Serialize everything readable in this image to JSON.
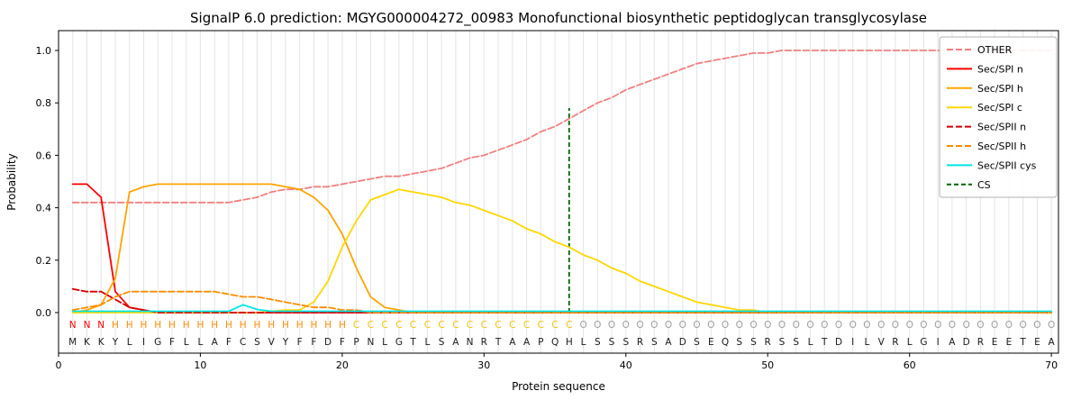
{
  "chart_data": {
    "type": "line",
    "title": "SignalP 6.0 prediction: MGYG000004272_00983 Monofunctional biosynthetic peptidoglycan transglycosylase",
    "xlabel": "Protein sequence",
    "ylabel": "Probability",
    "xlim": [
      0,
      70.5
    ],
    "ylim": [
      0,
      1.0
    ],
    "xticks": [
      0,
      10,
      20,
      30,
      40,
      50,
      60,
      70
    ],
    "yticks": [
      "0.0",
      "0.2",
      "0.4",
      "0.6",
      "0.8",
      "1.0"
    ],
    "grid": "vertical per-residue light gray",
    "legend_position": "upper right",
    "x_start": 1,
    "series": [
      {
        "name": "OTHER",
        "color": "#f08080",
        "dash": "7 3",
        "values": [
          0.42,
          0.42,
          0.42,
          0.42,
          0.42,
          0.42,
          0.42,
          0.42,
          0.42,
          0.42,
          0.42,
          0.42,
          0.43,
          0.44,
          0.46,
          0.47,
          0.47,
          0.48,
          0.48,
          0.49,
          0.5,
          0.51,
          0.52,
          0.52,
          0.53,
          0.54,
          0.55,
          0.57,
          0.59,
          0.6,
          0.62,
          0.64,
          0.66,
          0.69,
          0.71,
          0.74,
          0.77,
          0.8,
          0.82,
          0.85,
          0.87,
          0.89,
          0.91,
          0.93,
          0.95,
          0.96,
          0.97,
          0.98,
          0.99,
          0.99,
          1.0,
          1.0,
          1.0,
          1.0,
          1.0,
          1.0,
          1.0,
          1.0,
          1.0,
          1.0,
          1.0,
          1.0,
          1.0,
          1.0,
          1.0,
          1.0,
          1.0,
          1.0,
          1.0,
          1.0
        ]
      },
      {
        "name": "Sec/SPI n",
        "color": "#ff0000",
        "dash": null,
        "values": [
          0.49,
          0.49,
          0.44,
          0.08,
          0.02,
          0.01,
          0,
          0,
          0,
          0,
          0,
          0,
          0,
          0,
          0,
          0,
          0,
          0,
          0,
          0,
          0,
          0,
          0,
          0,
          0,
          0,
          0,
          0,
          0,
          0,
          0,
          0,
          0,
          0,
          0,
          0,
          0,
          0,
          0,
          0,
          0,
          0,
          0,
          0,
          0,
          0,
          0,
          0,
          0,
          0,
          0,
          0,
          0,
          0,
          0,
          0,
          0,
          0,
          0,
          0,
          0,
          0,
          0,
          0,
          0,
          0,
          0,
          0,
          0,
          0
        ]
      },
      {
        "name": "Sec/SPI h",
        "color": "#ffa500",
        "dash": null,
        "values": [
          0,
          0.01,
          0.03,
          0.13,
          0.46,
          0.48,
          0.49,
          0.49,
          0.49,
          0.49,
          0.49,
          0.49,
          0.49,
          0.49,
          0.49,
          0.48,
          0.47,
          0.44,
          0.39,
          0.3,
          0.17,
          0.06,
          0.02,
          0.01,
          0,
          0,
          0,
          0,
          0,
          0,
          0,
          0,
          0,
          0,
          0,
          0,
          0,
          0,
          0,
          0,
          0,
          0,
          0,
          0,
          0,
          0,
          0,
          0,
          0,
          0,
          0,
          0,
          0,
          0,
          0,
          0,
          0,
          0,
          0,
          0,
          0,
          0,
          0,
          0,
          0,
          0,
          0,
          0,
          0,
          0
        ]
      },
      {
        "name": "Sec/SPI c",
        "color": "#ffd700",
        "dash": null,
        "values": [
          0,
          0,
          0,
          0,
          0,
          0,
          0,
          0,
          0,
          0,
          0,
          0,
          0,
          0,
          0.005,
          0.01,
          0.01,
          0.04,
          0.12,
          0.25,
          0.35,
          0.43,
          0.45,
          0.47,
          0.46,
          0.45,
          0.44,
          0.42,
          0.41,
          0.39,
          0.37,
          0.35,
          0.32,
          0.3,
          0.27,
          0.25,
          0.22,
          0.2,
          0.17,
          0.15,
          0.12,
          0.1,
          0.08,
          0.06,
          0.04,
          0.03,
          0.02,
          0.01,
          0.01,
          0,
          0,
          0,
          0,
          0,
          0,
          0,
          0,
          0,
          0,
          0,
          0,
          0,
          0,
          0,
          0,
          0,
          0,
          0,
          0,
          0
        ]
      },
      {
        "name": "Sec/SPII n",
        "color": "#d40000",
        "dash": "7 3",
        "values": [
          0.09,
          0.08,
          0.08,
          0.05,
          0.02,
          0.01,
          0,
          0,
          0,
          0,
          0,
          0,
          0,
          0,
          0,
          0,
          0,
          0,
          0,
          0,
          0,
          0,
          0,
          0,
          0,
          0,
          0,
          0,
          0,
          0,
          0,
          0,
          0,
          0,
          0,
          0,
          0,
          0,
          0,
          0,
          0,
          0,
          0,
          0,
          0,
          0,
          0,
          0,
          0,
          0,
          0,
          0,
          0,
          0,
          0,
          0,
          0,
          0,
          0,
          0,
          0,
          0,
          0,
          0,
          0,
          0,
          0,
          0,
          0,
          0
        ]
      },
      {
        "name": "Sec/SPII h",
        "color": "#ff8c00",
        "dash": "7 3",
        "values": [
          0.01,
          0.02,
          0.03,
          0.06,
          0.08,
          0.08,
          0.08,
          0.08,
          0.08,
          0.08,
          0.08,
          0.07,
          0.06,
          0.06,
          0.05,
          0.04,
          0.03,
          0.02,
          0.02,
          0.01,
          0.01,
          0,
          0,
          0,
          0,
          0,
          0,
          0,
          0,
          0,
          0,
          0,
          0,
          0,
          0,
          0,
          0,
          0,
          0,
          0,
          0,
          0,
          0,
          0,
          0,
          0,
          0,
          0,
          0,
          0,
          0,
          0,
          0,
          0,
          0,
          0,
          0,
          0,
          0,
          0,
          0,
          0,
          0,
          0,
          0,
          0,
          0,
          0,
          0,
          0
        ]
      },
      {
        "name": "Sec/SPII cys",
        "color": "#00e5e5",
        "dash": null,
        "values": [
          0.005,
          0.005,
          0.005,
          0.005,
          0.005,
          0.005,
          0.005,
          0.005,
          0.005,
          0.005,
          0.005,
          0.005,
          0.03,
          0.012,
          0.005,
          0.005,
          0.005,
          0.005,
          0.005,
          0.005,
          0.005,
          0.005,
          0.005,
          0.005,
          0.005,
          0.005,
          0.005,
          0.005,
          0.005,
          0.005,
          0.005,
          0.005,
          0.005,
          0.005,
          0.005,
          0.005,
          0.005,
          0.005,
          0.005,
          0.005,
          0.005,
          0.005,
          0.005,
          0.005,
          0.005,
          0.005,
          0.005,
          0.005,
          0.005,
          0.005,
          0.005,
          0.005,
          0.005,
          0.005,
          0.005,
          0.005,
          0.005,
          0.005,
          0.005,
          0.005,
          0.005,
          0.005,
          0.005,
          0.005,
          0.005,
          0.005,
          0.005,
          0.005,
          0.005,
          0.005
        ]
      }
    ],
    "cs": {
      "label": "CS",
      "position": 36,
      "top": 0.78,
      "color": "#006400",
      "dash": "5 3"
    },
    "sequence": "MKKYLIGFLLAFCSVYFFDFPNLGTLSANRTAAPQHLSSSRSADSEQSSRSSLTDILVRLGIADREETEA",
    "region_labels": "NNNHHHHHHHHHHHHHHHHHCCCCCCCCCCCCCCCCOOOOOOOOOOOOOOOOOOOOOOOOOOOOOOOOOO",
    "region_colors": {
      "N": "#ff0000",
      "H": "#ff8c00",
      "C": "#f0c400",
      "O": "#9e9e9e"
    },
    "legend_labels": [
      "OTHER",
      "Sec/SPI n",
      "Sec/SPI h",
      "Sec/SPI c",
      "Sec/SPII n",
      "Sec/SPII h",
      "Sec/SPII cys",
      "CS"
    ]
  }
}
